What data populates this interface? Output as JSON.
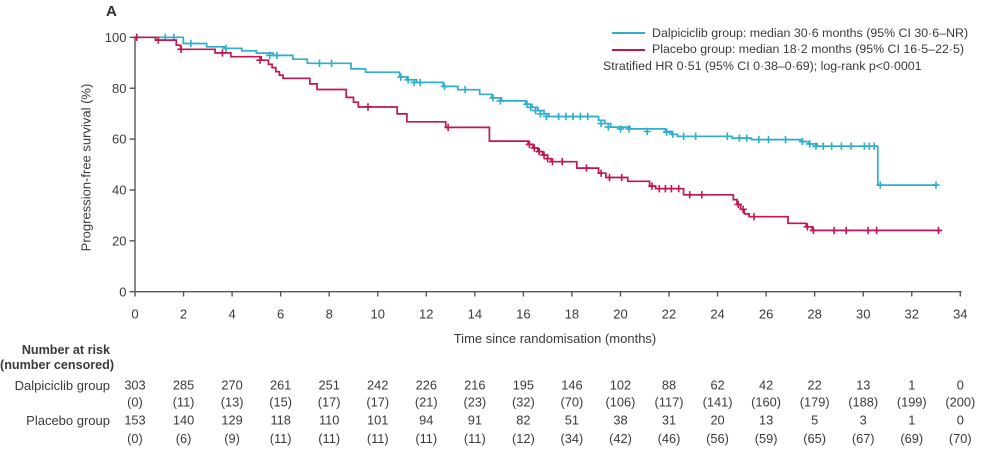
{
  "panel_label": "A",
  "colors": {
    "dalpiciclib": "#2FAECB",
    "placebo": "#C1164F",
    "axis": "#55565a",
    "text": "#3a3a3c"
  },
  "chart_data": {
    "type": "line",
    "subtype": "kaplan-meier-step",
    "xlabel": "Time since randomisation (months)",
    "ylabel": "Progression-free survival (%)",
    "xlim": [
      0,
      34
    ],
    "ylim": [
      0,
      100
    ],
    "xticks": [
      0,
      2,
      4,
      6,
      8,
      10,
      12,
      14,
      16,
      18,
      20,
      22,
      24,
      26,
      28,
      30,
      32,
      34
    ],
    "yticks": [
      0,
      20,
      40,
      60,
      80,
      100
    ],
    "grid": false,
    "legend_position": "top-right",
    "legend": [
      {
        "id": "dalpiciclib",
        "label": "Dalpiciclib group: median 30·6 months (95% CI 30·6–NR)"
      },
      {
        "id": "placebo",
        "label": "Placebo group: median 18·2 months (95% CI 16·5–22·5)"
      }
    ],
    "annotation": "Stratified HR 0·51 (95% CI 0·38–0·69); log-rank p<0·0001",
    "series": [
      {
        "id": "dalpiciclib",
        "name": "Dalpiciclib group",
        "color": "#2FAECB",
        "steps": [
          [
            0,
            100
          ],
          [
            1.99,
            97.6
          ],
          [
            2.95,
            96.3
          ],
          [
            3.7,
            95.7
          ],
          [
            4.4,
            94.7
          ],
          [
            5.0,
            93.8
          ],
          [
            5.7,
            92.9
          ],
          [
            6.5,
            91.4
          ],
          [
            7.1,
            89.8
          ],
          [
            8.9,
            87.6
          ],
          [
            9.5,
            86.3
          ],
          [
            10.9,
            84.4
          ],
          [
            11.2,
            83.3
          ],
          [
            11.6,
            82.3
          ],
          [
            12.7,
            80.7
          ],
          [
            13.3,
            79.4
          ],
          [
            14.2,
            77.6
          ],
          [
            14.7,
            76.2
          ],
          [
            15.1,
            75.0
          ],
          [
            16.1,
            73.7
          ],
          [
            16.35,
            72.5
          ],
          [
            16.6,
            71.2
          ],
          [
            16.85,
            69.9
          ],
          [
            17.05,
            68.9
          ],
          [
            19.1,
            67.4
          ],
          [
            19.35,
            66.1
          ],
          [
            19.6,
            64.7
          ],
          [
            20.4,
            64.0
          ],
          [
            21.85,
            63.0
          ],
          [
            22.1,
            61.9
          ],
          [
            22.35,
            61.1
          ],
          [
            24.6,
            60.4
          ],
          [
            25.4,
            59.8
          ],
          [
            27.45,
            59.0
          ],
          [
            27.75,
            58.1
          ],
          [
            28.1,
            57.2
          ],
          [
            30.6,
            41.9
          ],
          [
            33.05,
            41.9
          ]
        ],
        "censors": [
          [
            1.25,
            100
          ],
          [
            1.6,
            100
          ],
          [
            2.3,
            97.6
          ],
          [
            3.75,
            95.7
          ],
          [
            5.55,
            92.9
          ],
          [
            5.85,
            92.9
          ],
          [
            7.6,
            89.8
          ],
          [
            8.1,
            89.8
          ],
          [
            10.95,
            84.4
          ],
          [
            11.25,
            83.3
          ],
          [
            11.5,
            82.3
          ],
          [
            11.75,
            82.3
          ],
          [
            12.75,
            80.7
          ],
          [
            13.6,
            79.4
          ],
          [
            14.75,
            76.2
          ],
          [
            15.05,
            75.0
          ],
          [
            16.15,
            73.7
          ],
          [
            16.3,
            72.5
          ],
          [
            16.5,
            71.2
          ],
          [
            16.7,
            69.9
          ],
          [
            16.95,
            68.9
          ],
          [
            17.45,
            68.9
          ],
          [
            17.75,
            68.9
          ],
          [
            18.05,
            68.9
          ],
          [
            18.35,
            68.9
          ],
          [
            18.65,
            68.9
          ],
          [
            19.2,
            66.1
          ],
          [
            19.5,
            64.7
          ],
          [
            20.0,
            64.0
          ],
          [
            20.35,
            64.0
          ],
          [
            21.1,
            63.0
          ],
          [
            21.9,
            62.7
          ],
          [
            22.15,
            61.9
          ],
          [
            22.6,
            61.1
          ],
          [
            23.1,
            61.1
          ],
          [
            24.4,
            61.1
          ],
          [
            24.9,
            60.4
          ],
          [
            25.2,
            60.4
          ],
          [
            25.7,
            59.8
          ],
          [
            26.1,
            59.8
          ],
          [
            26.8,
            59.8
          ],
          [
            27.5,
            59.0
          ],
          [
            27.8,
            58.1
          ],
          [
            28.05,
            57.2
          ],
          [
            28.35,
            57.2
          ],
          [
            28.7,
            57.2
          ],
          [
            29.1,
            57.2
          ],
          [
            29.5,
            57.2
          ],
          [
            30.05,
            57.2
          ],
          [
            30.25,
            57.2
          ],
          [
            30.45,
            57.2
          ],
          [
            30.7,
            41.9
          ],
          [
            33.0,
            41.9
          ]
        ]
      },
      {
        "id": "placebo",
        "name": "Placebo group",
        "color": "#C1164F",
        "steps": [
          [
            0,
            100
          ],
          [
            0.85,
            98.9
          ],
          [
            1.7,
            96.9
          ],
          [
            1.88,
            95.3
          ],
          [
            3.3,
            93.9
          ],
          [
            3.95,
            92.4
          ],
          [
            5.2,
            91.0
          ],
          [
            5.5,
            89.4
          ],
          [
            5.65,
            88.1
          ],
          [
            5.8,
            86.5
          ],
          [
            5.95,
            85.1
          ],
          [
            6.1,
            83.9
          ],
          [
            7.2,
            81.7
          ],
          [
            7.5,
            79.5
          ],
          [
            8.7,
            76.4
          ],
          [
            9.0,
            74.5
          ],
          [
            9.2,
            72.6
          ],
          [
            10.8,
            69.9
          ],
          [
            11.2,
            66.8
          ],
          [
            12.8,
            64.6
          ],
          [
            14.6,
            59.2
          ],
          [
            16.2,
            57.9
          ],
          [
            16.4,
            56.5
          ],
          [
            16.6,
            55.1
          ],
          [
            16.8,
            53.7
          ],
          [
            17.0,
            52.3
          ],
          [
            17.15,
            51.1
          ],
          [
            18.2,
            48.6
          ],
          [
            19.1,
            46.6
          ],
          [
            19.4,
            44.9
          ],
          [
            20.3,
            43.4
          ],
          [
            21.2,
            41.5
          ],
          [
            21.45,
            40.5
          ],
          [
            22.6,
            38.1
          ],
          [
            24.65,
            36.2
          ],
          [
            24.8,
            34.3
          ],
          [
            24.95,
            32.4
          ],
          [
            25.1,
            30.6
          ],
          [
            25.3,
            29.5
          ],
          [
            26.9,
            26.9
          ],
          [
            27.65,
            25.5
          ],
          [
            27.9,
            24.1
          ],
          [
            33.2,
            24.1
          ]
        ],
        "censors": [
          [
            0.07,
            100
          ],
          [
            0.96,
            98.9
          ],
          [
            1.9,
            95.3
          ],
          [
            3.6,
            93.9
          ],
          [
            5.15,
            91.0
          ],
          [
            9.6,
            72.6
          ],
          [
            12.9,
            64.6
          ],
          [
            16.25,
            57.9
          ],
          [
            16.45,
            56.5
          ],
          [
            16.65,
            55.1
          ],
          [
            16.85,
            53.7
          ],
          [
            17.0,
            52.3
          ],
          [
            17.2,
            51.1
          ],
          [
            17.6,
            51.1
          ],
          [
            18.6,
            48.6
          ],
          [
            19.2,
            46.6
          ],
          [
            19.55,
            44.9
          ],
          [
            20.05,
            44.9
          ],
          [
            21.3,
            41.5
          ],
          [
            21.6,
            40.5
          ],
          [
            21.85,
            40.5
          ],
          [
            22.1,
            40.5
          ],
          [
            22.4,
            40.5
          ],
          [
            22.85,
            38.1
          ],
          [
            23.35,
            38.1
          ],
          [
            24.85,
            34.3
          ],
          [
            25.05,
            32.4
          ],
          [
            25.5,
            29.5
          ],
          [
            27.7,
            25.5
          ],
          [
            27.95,
            24.1
          ],
          [
            28.8,
            24.1
          ],
          [
            29.3,
            24.1
          ],
          [
            30.2,
            24.1
          ],
          [
            30.55,
            24.1
          ],
          [
            33.1,
            24.1
          ]
        ]
      }
    ]
  },
  "risk_table": {
    "header_line1": "Number at risk",
    "header_line2": "(number censored)",
    "timepoints": [
      0,
      2,
      4,
      6,
      8,
      10,
      12,
      14,
      16,
      18,
      20,
      22,
      24,
      26,
      28,
      30,
      32,
      34
    ],
    "rows": [
      {
        "id": "dalpiciclib",
        "label": "Dalpiciclib group",
        "at_risk": [
          "303",
          "285",
          "270",
          "261",
          "251",
          "242",
          "226",
          "216",
          "195",
          "146",
          "102",
          "88",
          "62",
          "42",
          "22",
          "13",
          "1",
          "0"
        ],
        "censored": [
          "(0)",
          "(11)",
          "(13)",
          "(15)",
          "(17)",
          "(17)",
          "(21)",
          "(23)",
          "(32)",
          "(70)",
          "(106)",
          "(117)",
          "(141)",
          "(160)",
          "(179)",
          "(188)",
          "(199)",
          "(200)"
        ]
      },
      {
        "id": "placebo",
        "label": "Placebo group",
        "at_risk": [
          "153",
          "140",
          "129",
          "118",
          "110",
          "101",
          "94",
          "91",
          "82",
          "51",
          "38",
          "31",
          "20",
          "13",
          "5",
          "3",
          "1",
          "0"
        ],
        "censored": [
          "(0)",
          "(6)",
          "(9)",
          "(11)",
          "(11)",
          "(11)",
          "(11)",
          "(11)",
          "(12)",
          "(34)",
          "(42)",
          "(46)",
          "(56)",
          "(59)",
          "(65)",
          "(67)",
          "(69)",
          "(70)"
        ]
      }
    ]
  }
}
